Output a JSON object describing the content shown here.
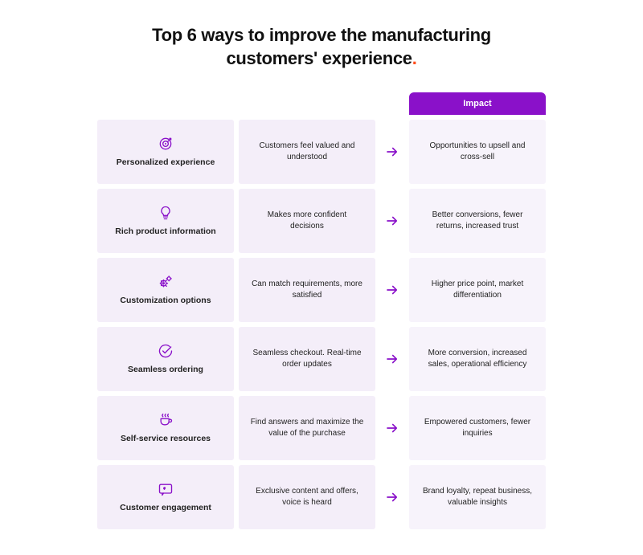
{
  "title_line1": "Top 6 ways to improve the manufacturing",
  "title_line2": "customers' experience",
  "title_dot": ".",
  "impact_header": "Impact",
  "colors": {
    "accent": "#8a11c9",
    "cell_bg": "#f4eef9",
    "impact_bg": "#f7f3fb",
    "dot": "#ff4d1c",
    "text": "#1a1a1a"
  },
  "rows": [
    {
      "icon": "target",
      "label": "Personalized experience",
      "benefit": "Customers feel valued and understood",
      "impact": "Opportunities to upsell and cross-sell"
    },
    {
      "icon": "bulb",
      "label": "Rich product information",
      "benefit": "Makes more confident decisions",
      "impact": "Better conversions, fewer returns, increased trust"
    },
    {
      "icon": "gears",
      "label": "Customization options",
      "benefit": "Can match requirements, more satisfied",
      "impact": "Higher price point, market differentiation"
    },
    {
      "icon": "check-circle",
      "label": "Seamless ordering",
      "benefit": "Seamless checkout. Real-time order updates",
      "impact": "More conversion, increased sales, operational efficiency"
    },
    {
      "icon": "coffee",
      "label": "Self-service resources",
      "benefit": "Find answers and maximize the value of the purchase",
      "impact": "Empowered customers, fewer inquiries"
    },
    {
      "icon": "chat",
      "label": "Customer engagement",
      "benefit": "Exclusive content and offers, voice is heard",
      "impact": "Brand loyalty, repeat business, valuable insights"
    }
  ]
}
